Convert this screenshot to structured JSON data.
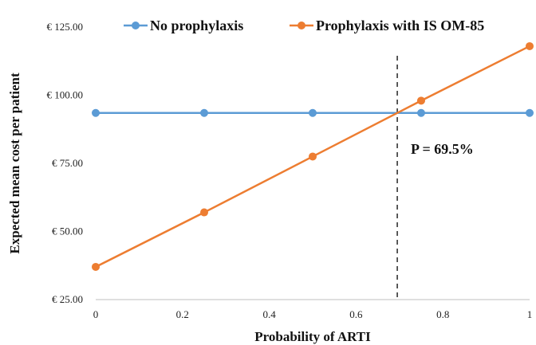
{
  "chart_data": {
    "type": "line",
    "x": [
      0,
      0.25,
      0.5,
      0.75,
      1
    ],
    "x_ticks": [
      "0",
      "0.2",
      "0.4",
      "0.6",
      "0.8",
      "1"
    ],
    "y_ticks": [
      "€ 25.00",
      "€ 50.00",
      "€ 75.00",
      "€ 100.00",
      "€ 125.00"
    ],
    "xlabel": "Probability of ARTI",
    "ylabel": "Expected mean cost per patient",
    "xlim": [
      0,
      1
    ],
    "ylim": [
      25,
      125
    ],
    "grid": false,
    "legend_position": "top",
    "series": [
      {
        "name": "No prophylaxis",
        "color": "#5b9bd5",
        "values": [
          93.5,
          93.5,
          93.5,
          93.5,
          93.5
        ]
      },
      {
        "name": "Prophylaxis with IS OM-85",
        "color": "#ed7d31",
        "values": [
          37,
          57,
          77.5,
          98,
          118
        ]
      }
    ],
    "threshold": {
      "x": 0.695,
      "label": "P = 69.5%"
    }
  }
}
